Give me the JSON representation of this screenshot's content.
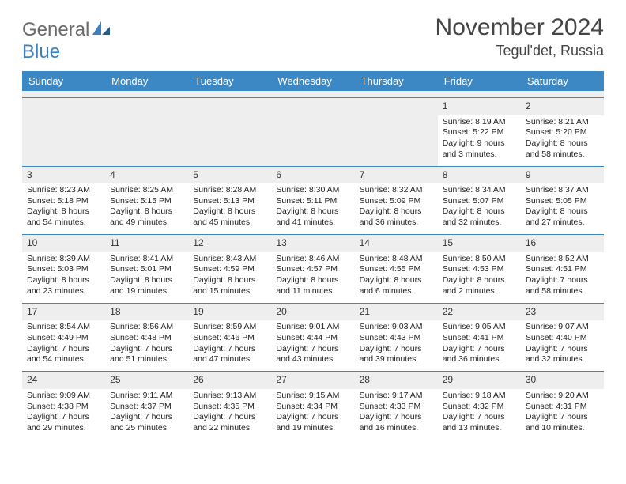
{
  "logo": {
    "text1": "General",
    "text2": "Blue"
  },
  "title": "November 2024",
  "location": "Tegul'det, Russia",
  "colors": {
    "header_bg": "#3b88c4",
    "header_text": "#ffffff",
    "daynum_bg": "#eeeeee",
    "row_border": "#3b88c4",
    "text": "#222222",
    "logo_general": "#6a6a6a",
    "logo_blue": "#3e7fbf"
  },
  "day_names": [
    "Sunday",
    "Monday",
    "Tuesday",
    "Wednesday",
    "Thursday",
    "Friday",
    "Saturday"
  ],
  "weeks": [
    [
      {
        "day": "",
        "lines": [
          "",
          "",
          "",
          ""
        ]
      },
      {
        "day": "",
        "lines": [
          "",
          "",
          "",
          ""
        ]
      },
      {
        "day": "",
        "lines": [
          "",
          "",
          "",
          ""
        ]
      },
      {
        "day": "",
        "lines": [
          "",
          "",
          "",
          ""
        ]
      },
      {
        "day": "",
        "lines": [
          "",
          "",
          "",
          ""
        ]
      },
      {
        "day": "1",
        "lines": [
          "Sunrise: 8:19 AM",
          "Sunset: 5:22 PM",
          "Daylight: 9 hours",
          "and 3 minutes."
        ]
      },
      {
        "day": "2",
        "lines": [
          "Sunrise: 8:21 AM",
          "Sunset: 5:20 PM",
          "Daylight: 8 hours",
          "and 58 minutes."
        ]
      }
    ],
    [
      {
        "day": "3",
        "lines": [
          "Sunrise: 8:23 AM",
          "Sunset: 5:18 PM",
          "Daylight: 8 hours",
          "and 54 minutes."
        ]
      },
      {
        "day": "4",
        "lines": [
          "Sunrise: 8:25 AM",
          "Sunset: 5:15 PM",
          "Daylight: 8 hours",
          "and 49 minutes."
        ]
      },
      {
        "day": "5",
        "lines": [
          "Sunrise: 8:28 AM",
          "Sunset: 5:13 PM",
          "Daylight: 8 hours",
          "and 45 minutes."
        ]
      },
      {
        "day": "6",
        "lines": [
          "Sunrise: 8:30 AM",
          "Sunset: 5:11 PM",
          "Daylight: 8 hours",
          "and 41 minutes."
        ]
      },
      {
        "day": "7",
        "lines": [
          "Sunrise: 8:32 AM",
          "Sunset: 5:09 PM",
          "Daylight: 8 hours",
          "and 36 minutes."
        ]
      },
      {
        "day": "8",
        "lines": [
          "Sunrise: 8:34 AM",
          "Sunset: 5:07 PM",
          "Daylight: 8 hours",
          "and 32 minutes."
        ]
      },
      {
        "day": "9",
        "lines": [
          "Sunrise: 8:37 AM",
          "Sunset: 5:05 PM",
          "Daylight: 8 hours",
          "and 27 minutes."
        ]
      }
    ],
    [
      {
        "day": "10",
        "lines": [
          "Sunrise: 8:39 AM",
          "Sunset: 5:03 PM",
          "Daylight: 8 hours",
          "and 23 minutes."
        ]
      },
      {
        "day": "11",
        "lines": [
          "Sunrise: 8:41 AM",
          "Sunset: 5:01 PM",
          "Daylight: 8 hours",
          "and 19 minutes."
        ]
      },
      {
        "day": "12",
        "lines": [
          "Sunrise: 8:43 AM",
          "Sunset: 4:59 PM",
          "Daylight: 8 hours",
          "and 15 minutes."
        ]
      },
      {
        "day": "13",
        "lines": [
          "Sunrise: 8:46 AM",
          "Sunset: 4:57 PM",
          "Daylight: 8 hours",
          "and 11 minutes."
        ]
      },
      {
        "day": "14",
        "lines": [
          "Sunrise: 8:48 AM",
          "Sunset: 4:55 PM",
          "Daylight: 8 hours",
          "and 6 minutes."
        ]
      },
      {
        "day": "15",
        "lines": [
          "Sunrise: 8:50 AM",
          "Sunset: 4:53 PM",
          "Daylight: 8 hours",
          "and 2 minutes."
        ]
      },
      {
        "day": "16",
        "lines": [
          "Sunrise: 8:52 AM",
          "Sunset: 4:51 PM",
          "Daylight: 7 hours",
          "and 58 minutes."
        ]
      }
    ],
    [
      {
        "day": "17",
        "lines": [
          "Sunrise: 8:54 AM",
          "Sunset: 4:49 PM",
          "Daylight: 7 hours",
          "and 54 minutes."
        ]
      },
      {
        "day": "18",
        "lines": [
          "Sunrise: 8:56 AM",
          "Sunset: 4:48 PM",
          "Daylight: 7 hours",
          "and 51 minutes."
        ]
      },
      {
        "day": "19",
        "lines": [
          "Sunrise: 8:59 AM",
          "Sunset: 4:46 PM",
          "Daylight: 7 hours",
          "and 47 minutes."
        ]
      },
      {
        "day": "20",
        "lines": [
          "Sunrise: 9:01 AM",
          "Sunset: 4:44 PM",
          "Daylight: 7 hours",
          "and 43 minutes."
        ]
      },
      {
        "day": "21",
        "lines": [
          "Sunrise: 9:03 AM",
          "Sunset: 4:43 PM",
          "Daylight: 7 hours",
          "and 39 minutes."
        ]
      },
      {
        "day": "22",
        "lines": [
          "Sunrise: 9:05 AM",
          "Sunset: 4:41 PM",
          "Daylight: 7 hours",
          "and 36 minutes."
        ]
      },
      {
        "day": "23",
        "lines": [
          "Sunrise: 9:07 AM",
          "Sunset: 4:40 PM",
          "Daylight: 7 hours",
          "and 32 minutes."
        ]
      }
    ],
    [
      {
        "day": "24",
        "lines": [
          "Sunrise: 9:09 AM",
          "Sunset: 4:38 PM",
          "Daylight: 7 hours",
          "and 29 minutes."
        ]
      },
      {
        "day": "25",
        "lines": [
          "Sunrise: 9:11 AM",
          "Sunset: 4:37 PM",
          "Daylight: 7 hours",
          "and 25 minutes."
        ]
      },
      {
        "day": "26",
        "lines": [
          "Sunrise: 9:13 AM",
          "Sunset: 4:35 PM",
          "Daylight: 7 hours",
          "and 22 minutes."
        ]
      },
      {
        "day": "27",
        "lines": [
          "Sunrise: 9:15 AM",
          "Sunset: 4:34 PM",
          "Daylight: 7 hours",
          "and 19 minutes."
        ]
      },
      {
        "day": "28",
        "lines": [
          "Sunrise: 9:17 AM",
          "Sunset: 4:33 PM",
          "Daylight: 7 hours",
          "and 16 minutes."
        ]
      },
      {
        "day": "29",
        "lines": [
          "Sunrise: 9:18 AM",
          "Sunset: 4:32 PM",
          "Daylight: 7 hours",
          "and 13 minutes."
        ]
      },
      {
        "day": "30",
        "lines": [
          "Sunrise: 9:20 AM",
          "Sunset: 4:31 PM",
          "Daylight: 7 hours",
          "and 10 minutes."
        ]
      }
    ]
  ]
}
